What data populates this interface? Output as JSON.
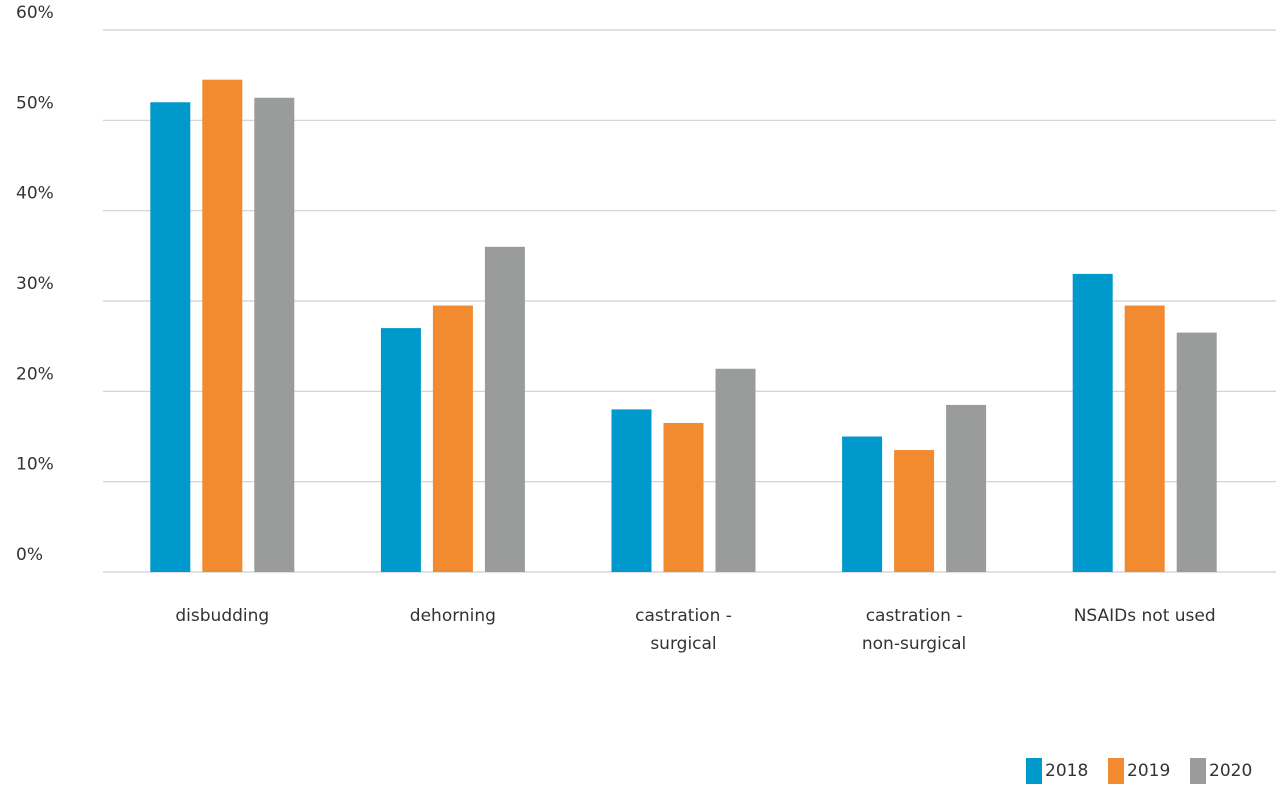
{
  "chart_data": {
    "type": "bar",
    "categories": [
      [
        "disbudding"
      ],
      [
        "dehorning"
      ],
      [
        "castration -",
        "surgical"
      ],
      [
        "castration -",
        "non-surgical"
      ],
      [
        "NSAIDs not used"
      ]
    ],
    "series": [
      {
        "name": "2018",
        "color": "#0099CC",
        "values": [
          52,
          27,
          18,
          15,
          33
        ]
      },
      {
        "name": "2019",
        "color": "#F28A30",
        "values": [
          54.5,
          29.5,
          16.5,
          13.5,
          29.5
        ]
      },
      {
        "name": "2020",
        "color": "#9A9C9C",
        "values": [
          52.5,
          36,
          22.5,
          18.5,
          26.5
        ]
      }
    ],
    "y_ticks": [
      "0%",
      "10%",
      "20%",
      "30%",
      "40%",
      "50%",
      "60%"
    ],
    "ylim": [
      0,
      60
    ],
    "grid": true,
    "legend_position": "bottom-right"
  }
}
